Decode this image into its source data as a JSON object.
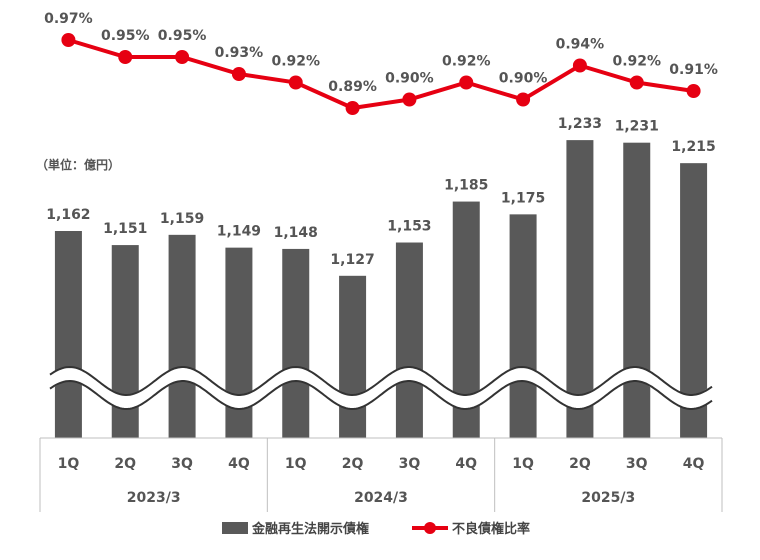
{
  "unit_label": "（単位：億円）",
  "legend": {
    "bar_label": "金融再生法開示債権",
    "line_label": "不良債権比率"
  },
  "colors": {
    "bar": "#595959",
    "line": "#e60012",
    "text": "#555555"
  },
  "chart_data": {
    "type": "bar+line",
    "categories": [
      "1Q",
      "2Q",
      "3Q",
      "4Q",
      "1Q",
      "2Q",
      "3Q",
      "4Q",
      "1Q",
      "2Q",
      "3Q",
      "4Q"
    ],
    "groups": [
      {
        "label": "2023/3",
        "quarters": [
          "1Q",
          "2Q",
          "3Q",
          "4Q"
        ]
      },
      {
        "label": "2024/3",
        "quarters": [
          "1Q",
          "2Q",
          "3Q",
          "4Q"
        ]
      },
      {
        "label": "2025/3",
        "quarters": [
          "1Q",
          "2Q",
          "3Q",
          "4Q"
        ]
      }
    ],
    "series": [
      {
        "name": "金融再生法開示債権",
        "type": "bar",
        "values": [
          1162,
          1151,
          1159,
          1149,
          1148,
          1127,
          1153,
          1185,
          1175,
          1233,
          1231,
          1215
        ],
        "labels": [
          "1,162",
          "1,151",
          "1,159",
          "1,149",
          "1,148",
          "1,127",
          "1,153",
          "1,185",
          "1,175",
          "1,233",
          "1,231",
          "1,215"
        ]
      },
      {
        "name": "不良債権比率",
        "type": "line",
        "values": [
          0.97,
          0.95,
          0.95,
          0.93,
          0.92,
          0.89,
          0.9,
          0.92,
          0.9,
          0.94,
          0.92,
          0.91
        ],
        "labels": [
          "0.97%",
          "0.95%",
          "0.95%",
          "0.93%",
          "0.92%",
          "0.89%",
          "0.90%",
          "0.92%",
          "0.90%",
          "0.94%",
          "0.92%",
          "0.91%"
        ]
      }
    ],
    "axis_break": true,
    "grid": false,
    "legend_position": "bottom"
  }
}
